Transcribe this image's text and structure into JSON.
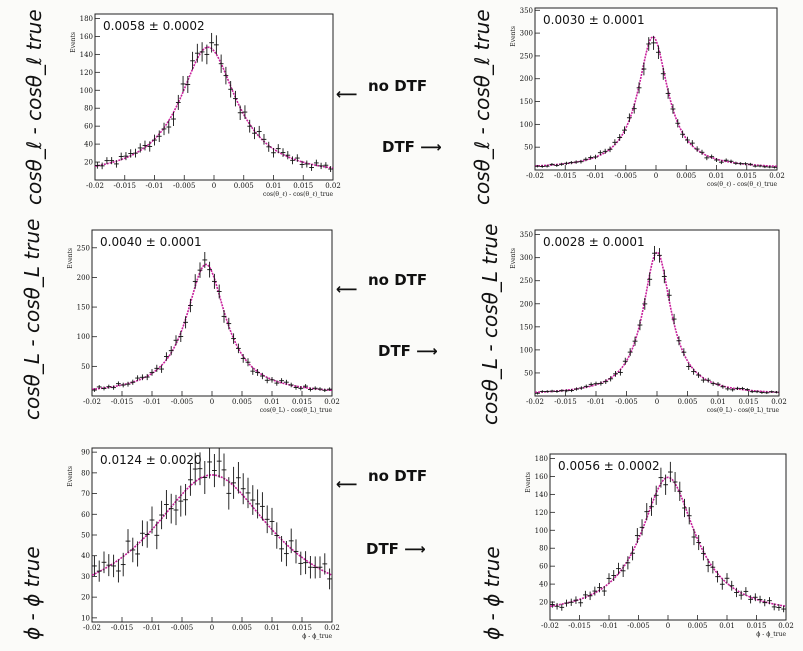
{
  "chart_data": [
    {
      "type": "scatter",
      "title": "0.0058 ± 0.0002",
      "ylabel": "Events",
      "xlabel": "cos(θ_ℓ) - cos(θ_ℓ)_true",
      "xlim": [
        -0.02,
        0.02
      ],
      "ylim": [
        0,
        185
      ],
      "yticks": [
        20,
        40,
        60,
        80,
        100,
        120,
        140,
        160,
        180
      ],
      "xticks": [
        -0.02,
        -0.015,
        -0.01,
        -0.005,
        0,
        0.005,
        0.01,
        0.015,
        0.02
      ],
      "fit": {
        "peak": 145,
        "center": -0.001,
        "width": 0.0058,
        "base": 3
      },
      "noise_seed": 1
    },
    {
      "type": "scatter",
      "title": "0.0030 ± 0.0001",
      "ylabel": "Events",
      "xlabel": "cos(θ_ℓ) - cos(θ_ℓ)_true",
      "xlim": [
        -0.02,
        0.02
      ],
      "ylim": [
        0,
        355
      ],
      "yticks": [
        50,
        100,
        150,
        200,
        250,
        300,
        350
      ],
      "xticks": [
        -0.02,
        -0.015,
        -0.01,
        -0.005,
        0,
        0.005,
        0.01,
        0.015,
        0.02
      ],
      "fit": {
        "peak": 290,
        "center": -0.0005,
        "width": 0.003,
        "base": 2
      },
      "noise_seed": 2
    },
    {
      "type": "scatter",
      "title": "0.0040 ± 0.0001",
      "ylabel": "Events",
      "xlabel": "cos(θ_L) - cos(θ_L)_true",
      "xlim": [
        -0.02,
        0.02
      ],
      "ylim": [
        0,
        280
      ],
      "yticks": [
        50,
        100,
        150,
        200,
        250
      ],
      "xticks": [
        -0.02,
        -0.015,
        -0.01,
        -0.005,
        0,
        0.005,
        0.01,
        0.015,
        0.02
      ],
      "fit": {
        "peak": 220,
        "center": -0.001,
        "width": 0.004,
        "base": 2
      },
      "noise_seed": 3
    },
    {
      "type": "scatter",
      "title": "0.0028 ± 0.0001",
      "ylabel": "Events",
      "xlabel": "cos(θ_L) - cos(θ_L)_true",
      "xlim": [
        -0.02,
        0.02
      ],
      "ylim": [
        0,
        360
      ],
      "yticks": [
        50,
        100,
        150,
        200,
        250,
        300,
        350
      ],
      "xticks": [
        -0.02,
        -0.015,
        -0.01,
        -0.005,
        0,
        0.005,
        0.01,
        0.015,
        0.02
      ],
      "fit": {
        "peak": 310,
        "center": 0.0,
        "width": 0.0028,
        "base": 2
      },
      "noise_seed": 4
    },
    {
      "type": "scatter",
      "title": "0.0124 ± 0.0020",
      "ylabel": "Events",
      "xlabel": "ϕ - ϕ_true",
      "xlim": [
        -0.02,
        0.02
      ],
      "ylim": [
        8,
        92
      ],
      "yticks": [
        10,
        20,
        30,
        40,
        50,
        60,
        70,
        80,
        90
      ],
      "xticks": [
        -0.02,
        -0.015,
        -0.01,
        -0.005,
        0,
        0.005,
        0.01,
        0.015,
        0.02
      ],
      "fit": {
        "peak": 67,
        "center": 0.0,
        "width": 0.0124,
        "base": 12
      },
      "noise_seed": 5
    },
    {
      "type": "scatter",
      "title": "0.0056 ± 0.0002",
      "ylabel": "Events",
      "xlabel": "ϕ - ϕ_true",
      "xlim": [
        -0.02,
        0.02
      ],
      "ylim": [
        0,
        185
      ],
      "yticks": [
        20,
        40,
        60,
        80,
        100,
        120,
        140,
        160,
        180
      ],
      "xticks": [
        -0.02,
        -0.015,
        -0.01,
        -0.005,
        0,
        0.005,
        0.01,
        0.015,
        0.02
      ],
      "fit": {
        "peak": 155,
        "center": 0.0,
        "width": 0.0056,
        "base": 4
      },
      "noise_seed": 6
    }
  ],
  "annotations": {
    "left_labels": [
      "cosθ_ℓ - cosθ_ℓ true",
      "cosθ_L - cosθ_L true",
      "ϕ - ϕ true"
    ],
    "right_labels": [
      "cosθ_ℓ - cosθ_ℓ true",
      "cosθ_L - cosθ_L true",
      "ϕ - ϕ true"
    ],
    "no_dtf": "no DTF",
    "dtf": "DTF",
    "arrow_left": "⟵",
    "arrow_right": "⟶"
  }
}
